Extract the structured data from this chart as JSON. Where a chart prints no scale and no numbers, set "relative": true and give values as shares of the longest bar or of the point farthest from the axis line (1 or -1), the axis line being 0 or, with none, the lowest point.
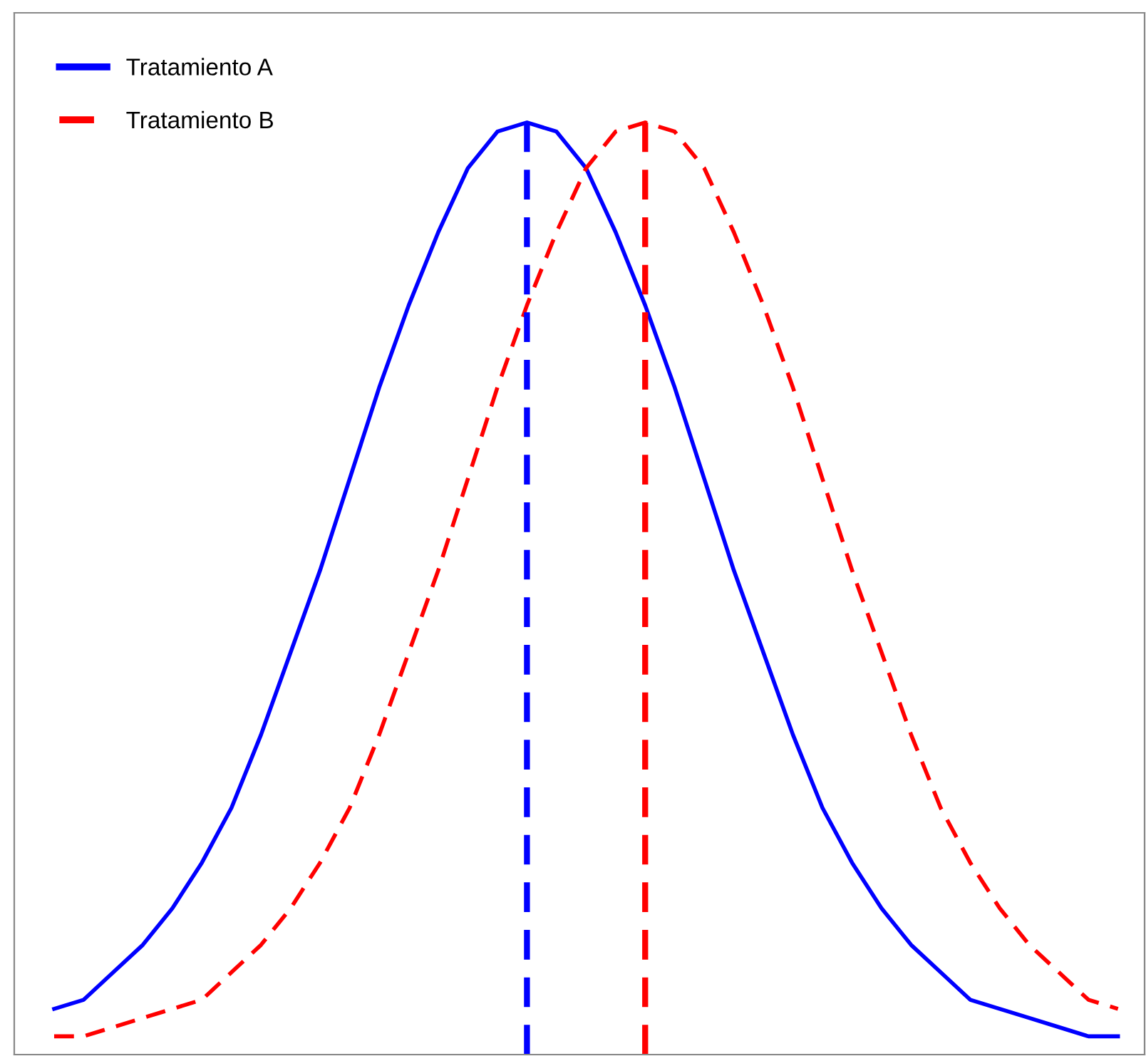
{
  "chart_data": {
    "type": "line",
    "relative": true,
    "categories": [
      null,
      null,
      null,
      null,
      null,
      null,
      null,
      null,
      null,
      null,
      null,
      null,
      null,
      null,
      null,
      null,
      null,
      null,
      null,
      null,
      null,
      null,
      null,
      null,
      null,
      null,
      null,
      null,
      null,
      null,
      null,
      null,
      null,
      null,
      null,
      null,
      null
    ],
    "series": [
      {
        "name": "Tratamiento A",
        "color": "#0000ff",
        "line_style": "solid",
        "values": [
          0.03,
          0.04,
          0.07,
          0.1,
          0.14,
          0.19,
          0.25,
          0.33,
          0.42,
          0.51,
          0.61,
          0.71,
          0.8,
          0.88,
          0.95,
          0.99,
          1,
          0.99,
          0.95,
          0.88,
          0.8,
          0.71,
          0.61,
          0.51,
          0.42,
          0.33,
          0.25,
          0.19,
          0.14,
          0.1,
          0.07,
          0.04,
          0.03,
          0.02,
          0.01,
          0,
          0
        ]
      },
      {
        "name": "Tratamiento B",
        "color": "#ff0000",
        "line_style": "dashed",
        "values": [
          0,
          0,
          0.01,
          0.02,
          0.03,
          0.04,
          0.07,
          0.1,
          0.14,
          0.19,
          0.25,
          0.33,
          0.42,
          0.51,
          0.61,
          0.71,
          0.8,
          0.88,
          0.95,
          0.99,
          1,
          0.99,
          0.95,
          0.88,
          0.8,
          0.71,
          0.61,
          0.51,
          0.42,
          0.33,
          0.25,
          0.19,
          0.14,
          0.1,
          0.07,
          0.04,
          0.03
        ]
      }
    ],
    "legend": "top left",
    "marker": "none"
  }
}
